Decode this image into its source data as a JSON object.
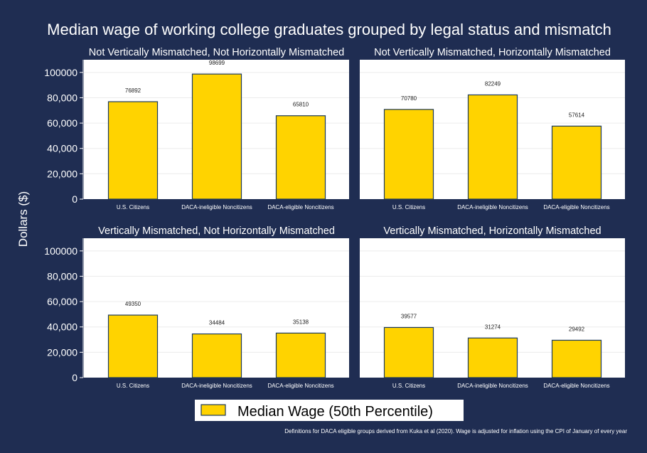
{
  "figure": {
    "title": "Median wage of working college graduates grouped by legal status and mismatch",
    "ylabel": "Dollars ($)",
    "legend_label": "Median Wage (50th Percentile)",
    "legend_position": "bottom",
    "note": "Definitions for DACA eligible groups derived from Kuka et al (2020). Wage is adjusted for inflation using the CPI of January of every year",
    "background_color": "#1f2d52",
    "panel_color": "#ffffff",
    "bar_color": "#ffd300",
    "bar_edge_color": "#1c3a5c",
    "gridlines": true
  },
  "chart_data": [
    {
      "type": "bar",
      "title": "Not Vertically Mismatched, Not Horizontally Mismatched",
      "categories": [
        "U.S. Citizens",
        "DACA-ineligible Noncitizens",
        "DACA-eligible Noncitizens"
      ],
      "values": [
        76892,
        98699,
        65810
      ],
      "value_labels": [
        "76892",
        "98699",
        "65810"
      ],
      "yticks": [
        "0",
        "20,000",
        "40,000",
        "60,000",
        "80,000",
        "100000"
      ],
      "ylim": [
        0,
        110000
      ]
    },
    {
      "type": "bar",
      "title": "Not Vertically Mismatched, Horizontally Mismatched",
      "categories": [
        "U.S. Citizens",
        "DACA-ineligible Noncitizens",
        "DACA-eligible Noncitizens"
      ],
      "values": [
        70780,
        82249,
        57614
      ],
      "value_labels": [
        "70780",
        "82249",
        "57614"
      ],
      "yticks": [],
      "ylim": [
        0,
        110000
      ]
    },
    {
      "type": "bar",
      "title": "Vertically Mismatched, Not Horizontally Mismatched",
      "categories": [
        "U.S. Citizens",
        "DACA-ineligible Noncitizens",
        "DACA-eligible Noncitizens"
      ],
      "values": [
        49350,
        34484,
        35138
      ],
      "value_labels": [
        "49350",
        "34484",
        "35138"
      ],
      "yticks": [
        "0",
        "20,000",
        "40,000",
        "60,000",
        "80,000",
        "100000"
      ],
      "ylim": [
        0,
        110000
      ]
    },
    {
      "type": "bar",
      "title": "Vertically Mismatched, Horizontally Mismatched",
      "categories": [
        "U.S. Citizens",
        "DACA-ineligible Noncitizens",
        "DACA-eligible Noncitizens"
      ],
      "values": [
        39577,
        31274,
        29492
      ],
      "value_labels": [
        "39577",
        "31274",
        "29492"
      ],
      "yticks": [],
      "ylim": [
        0,
        110000
      ]
    }
  ]
}
